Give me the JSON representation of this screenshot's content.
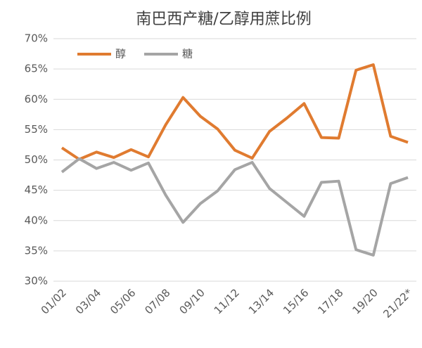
{
  "chart_data": {
    "type": "line",
    "title": "南巴西产糖/乙醇用蔗比例",
    "categories": [
      "01/02",
      null,
      "03/04",
      null,
      "05/06",
      null,
      "07/08",
      null,
      "09/10",
      null,
      "11/12",
      null,
      "13/14",
      null,
      "15/16",
      null,
      "17/18",
      null,
      "19/20",
      null,
      "21/22*"
    ],
    "series": [
      {
        "name": "醇",
        "color": "#e07b30",
        "values": [
          52.0,
          50.1,
          51.3,
          50.4,
          51.7,
          50.5,
          55.8,
          60.3,
          57.2,
          55.1,
          51.6,
          50.3,
          54.7,
          56.9,
          59.3,
          53.7,
          53.6,
          64.8,
          65.7,
          53.9,
          52.9
        ]
      },
      {
        "name": "糖",
        "color": "#a5a5a5",
        "values": [
          48.0,
          50.2,
          48.6,
          49.6,
          48.3,
          49.5,
          44.2,
          39.7,
          42.8,
          44.9,
          48.4,
          49.6,
          45.3,
          43.0,
          40.7,
          46.3,
          46.5,
          35.2,
          34.3,
          46.1,
          47.1
        ]
      }
    ],
    "ylim": [
      30,
      70
    ],
    "yticks": [
      {
        "value": 30,
        "label": "30%"
      },
      {
        "value": 35,
        "label": "35%"
      },
      {
        "value": 40,
        "label": "40%"
      },
      {
        "value": 45,
        "label": "45%"
      },
      {
        "value": 50,
        "label": "50%"
      },
      {
        "value": 55,
        "label": "55%"
      },
      {
        "value": 60,
        "label": "60%"
      },
      {
        "value": 65,
        "label": "65%"
      },
      {
        "value": 70,
        "label": "70%"
      }
    ],
    "grid": true,
    "legend": "top-left"
  }
}
